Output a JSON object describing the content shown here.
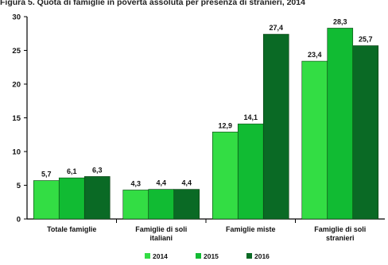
{
  "title": "Figura 5. Quota di famiglie in povertà assoluta per presenza di stranieri, 2014",
  "chart_data": {
    "type": "bar",
    "categories": [
      [
        "Totale famiglie"
      ],
      [
        "Famiglie di soli",
        "italiani"
      ],
      [
        "Famiglie miste"
      ],
      [
        "Famiglie di soli",
        "stranieri"
      ]
    ],
    "series": [
      {
        "name": "2014",
        "values": [
          5.7,
          4.3,
          12.9,
          23.4
        ],
        "labels": [
          "5,7",
          "4,3",
          "12,9",
          "23,4"
        ],
        "color": "#33dd44"
      },
      {
        "name": "2015",
        "values": [
          6.1,
          4.4,
          14.1,
          28.3
        ],
        "labels": [
          "6,1",
          "4,4",
          "14,1",
          "28,3"
        ],
        "color": "#11bb33"
      },
      {
        "name": "2016",
        "values": [
          6.3,
          4.4,
          27.4,
          25.7
        ],
        "labels": [
          "6,3",
          "4,4",
          "27,4",
          "25,7"
        ],
        "color": "#0a6a25"
      }
    ],
    "yticks": [
      0,
      5,
      10,
      15,
      20,
      25,
      30
    ],
    "ylim": [
      0,
      30
    ],
    "grid": false,
    "legend_position": "bottom-center"
  }
}
